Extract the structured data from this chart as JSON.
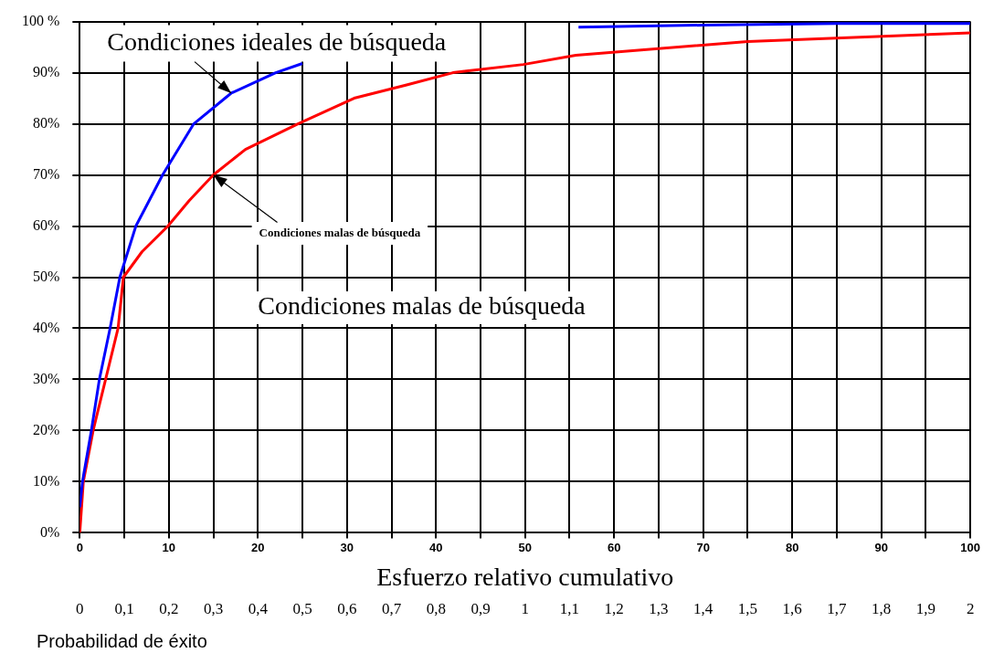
{
  "chart_data": {
    "type": "line",
    "xlabel": "Esfuerzo relativo cumulativo",
    "xlim": [
      0,
      100
    ],
    "xticks": [
      0,
      {
        "value": 5,
        "label": null
      },
      10,
      {
        "value": 15,
        "label": null
      },
      20,
      {
        "value": 25,
        "label": null
      },
      30,
      {
        "value": 35,
        "label": null
      },
      40,
      {
        "value": 45,
        "label": null
      },
      50,
      {
        "value": 55,
        "label": null
      },
      60,
      {
        "value": 65,
        "label": null
      },
      70,
      {
        "value": 75,
        "label": null
      },
      80,
      {
        "value": 85,
        "label": null
      },
      90,
      {
        "value": 95,
        "label": null
      },
      100
    ],
    "x2lim": [
      0,
      2
    ],
    "x2ticks": [
      0,
      {
        "value": 0.1,
        "label": "0,1"
      },
      {
        "value": 0.2,
        "label": "0,2"
      },
      {
        "value": 0.3,
        "label": "0,3"
      },
      {
        "value": 0.4,
        "label": "0,4"
      },
      {
        "value": 0.5,
        "label": "0,5"
      },
      {
        "value": 0.6,
        "label": "0,6"
      },
      {
        "value": 0.7,
        "label": "0,7"
      },
      {
        "value": 0.8,
        "label": "0,8"
      },
      {
        "value": 0.9,
        "label": "0,9"
      },
      1,
      {
        "value": 1.1,
        "label": "1,1"
      },
      {
        "value": 1.2,
        "label": "1,2"
      },
      {
        "value": 1.3,
        "label": "1,3"
      },
      {
        "value": 1.4,
        "label": "1,4"
      },
      {
        "value": 1.5,
        "label": "1,5"
      },
      {
        "value": 1.6,
        "label": "1,6"
      },
      {
        "value": 1.7,
        "label": "1,7"
      },
      {
        "value": 1.8,
        "label": "1,8"
      },
      {
        "value": 1.9,
        "label": "1,9"
      },
      2
    ],
    "ylim": [
      0,
      100
    ],
    "yticks": [
      {
        "value": 0,
        "label": "0%"
      },
      {
        "value": 10,
        "label": "10%"
      },
      {
        "value": 20,
        "label": "20%"
      },
      {
        "value": 30,
        "label": "30%"
      },
      {
        "value": 40,
        "label": "40%"
      },
      {
        "value": 50,
        "label": "50%"
      },
      {
        "value": 60,
        "label": "60%"
      },
      {
        "value": 70,
        "label": "70%"
      },
      {
        "value": 80,
        "label": "80%"
      },
      {
        "value": 90,
        "label": "90%"
      },
      {
        "value": 100,
        "label": "100 %"
      }
    ],
    "grid": true,
    "legend": false,
    "marker": "none",
    "line_style": "solid",
    "series": [
      {
        "color": "#0000ff",
        "x": [
          0,
          0.3,
          1.3,
          2.2,
          3.4,
          4.5,
          6.3,
          9.3,
          12.8,
          17,
          22,
          25,
          40,
          56,
          70,
          85,
          100
        ],
        "values": [
          5,
          10,
          20,
          30,
          40,
          50,
          60,
          70,
          80,
          86,
          90,
          91.8,
          null,
          98.9,
          99.3,
          99.6,
          99.6
        ]
      },
      {
        "color": "#ff0000",
        "x": [
          0,
          0.4,
          1.5,
          2.9,
          4.3,
          4.9,
          7,
          9.9,
          12.3,
          15,
          18.6,
          24.5,
          30.8,
          36.7,
          41.9,
          43.2,
          49.8,
          55.7,
          75,
          100
        ],
        "values": [
          0,
          10,
          20,
          30,
          40,
          50,
          55,
          60,
          65,
          70,
          75,
          80,
          85,
          87.6,
          90,
          90.3,
          91.6,
          93.4,
          96.1,
          97.8
        ]
      }
    ],
    "annotations": [
      {
        "text": "Condiciones ideales de búsqueda",
        "x": 17,
        "y": 86
      },
      {
        "text": "Condiciones malas de búsqueda",
        "x": 15,
        "y": 70
      },
      "Condiciones malas de búsqueda",
      "Probabilidad de éxito"
    ]
  }
}
